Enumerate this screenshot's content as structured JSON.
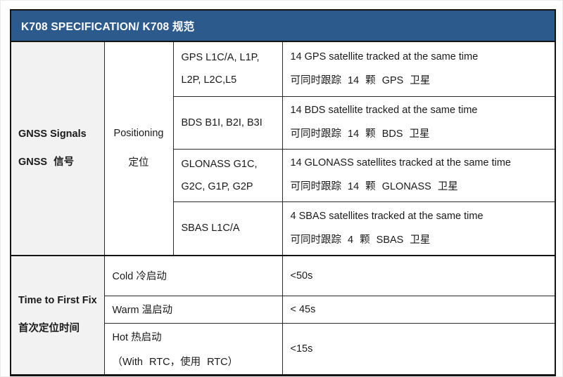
{
  "colors": {
    "title_bg": "#2d5a8c",
    "title_text": "#ffffff",
    "label_col_bg": "#f2f2f2",
    "border": "#141414",
    "body_text": "#1a1a1a"
  },
  "title": "K708 SPECIFICATION/ K708 规范",
  "gnss_section": {
    "label_en": "GNSS Signals",
    "label_zh": "GNSS 信号",
    "sub_label_en": "Positioning",
    "sub_label_zh": "定位",
    "rows": [
      {
        "signal_line1": "GPS L1C/A, L1P,",
        "signal_line2": "L2P, L2C,L5",
        "desc_en": "14 GPS satellite tracked at the same time",
        "desc_zh": "可同时跟踪 14 颗 GPS 卫星"
      },
      {
        "signal_line1": "BDS B1I, B2I, B3I",
        "signal_line2": "",
        "desc_en": "14 BDS satellite tracked at the same time",
        "desc_zh": "可同时跟踪 14 颗 BDS 卫星"
      },
      {
        "signal_line1": "GLONASS G1C,",
        "signal_line2": "G2C, G1P, G2P",
        "desc_en": "14 GLONASS satellites tracked at the same time",
        "desc_zh": "可同时跟踪 14 颗 GLONASS 卫星"
      },
      {
        "signal_line1": "SBAS L1C/A",
        "signal_line2": "",
        "desc_en": "4 SBAS satellites tracked at the same time",
        "desc_zh": "可同时跟踪 4 颗 SBAS 卫星"
      }
    ]
  },
  "ttff_section": {
    "label_en": "Time to First Fix",
    "label_zh": "首次定位时间",
    "rows": [
      {
        "mode_line1": "Cold 冷启动",
        "mode_line2": "",
        "value": "<50s"
      },
      {
        "mode_line1": "Warm 温启动",
        "mode_line2": "",
        "value": "< 45s"
      },
      {
        "mode_line1": "Hot 热启动",
        "mode_line2": "（With RTC，使用 RTC）",
        "value": "<15s"
      }
    ]
  }
}
